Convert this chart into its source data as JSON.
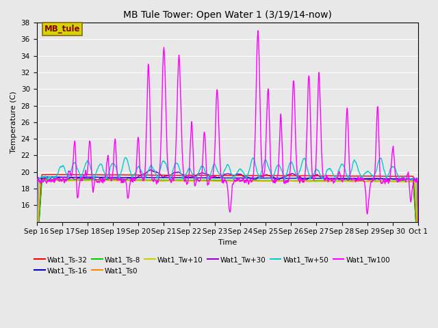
{
  "title": "MB Tule Tower: Open Water 1 (3/19/14-now)",
  "xlabel": "Time",
  "ylabel": "Temperature (C)",
  "ylim": [
    14,
    38
  ],
  "yticks": [
    16,
    18,
    20,
    22,
    24,
    26,
    28,
    30,
    32,
    34,
    36,
    38
  ],
  "bg_color": "#e8e8e8",
  "plot_bg_color": "#e8e8e8",
  "legend_box_text": "MB_tule",
  "series_colors": {
    "Wat1_Ts-32": "#ff0000",
    "Wat1_Ts-16": "#0000cc",
    "Wat1_Ts-8": "#00cc00",
    "Wat1_Ts0": "#ff8800",
    "Wat1_Tw+10": "#cccc00",
    "Wat1_Tw+30": "#9900cc",
    "Wat1_Tw+50": "#00cccc",
    "Wat1_Tw100": "#ff00ff"
  },
  "x_labels": [
    "Sep 16",
    "Sep 17",
    "Sep 18",
    "Sep 19",
    "Sep 20",
    "Sep 21",
    "Sep 22",
    "Sep 23",
    "Sep 24",
    "Sep 25",
    "Sep 26",
    "Sep 27",
    "Sep 28",
    "Sep 29",
    "Sep 30",
    "Oct 1"
  ]
}
